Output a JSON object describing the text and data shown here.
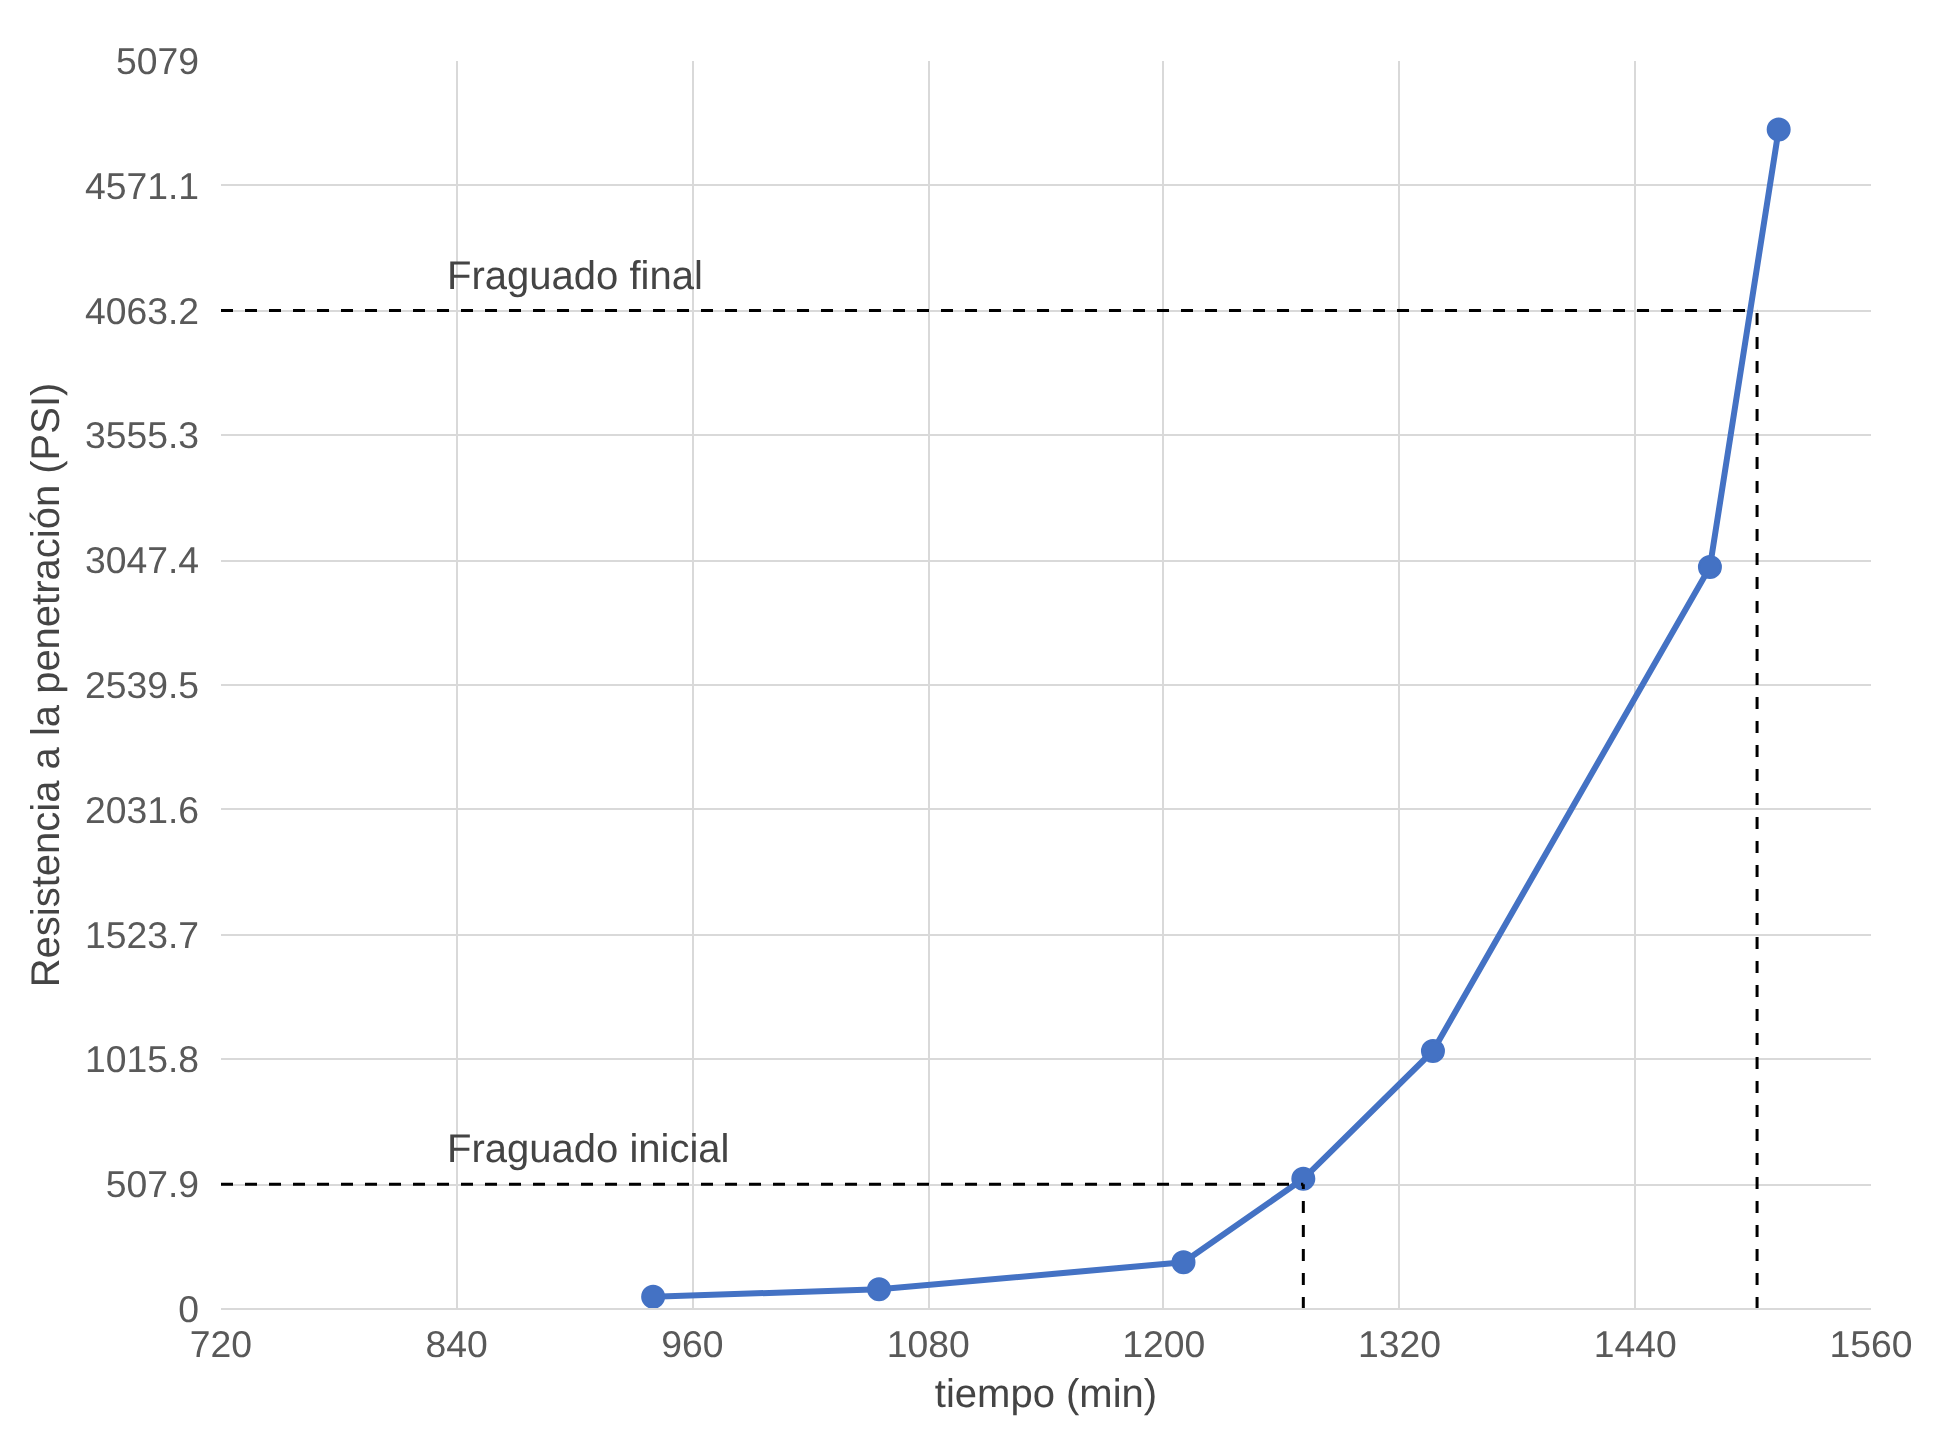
{
  "chart_data": {
    "type": "line",
    "xlabel": "tiempo (min)",
    "ylabel": "Resistencia a la penetración (PSI)",
    "x": [
      940,
      1055,
      1210,
      1271,
      1337,
      1478,
      1513
    ],
    "series": [
      {
        "color": "#4472c4",
        "values": [
          50,
          80,
          190,
          530,
          1050,
          3020,
          4800
        ]
      }
    ],
    "marker": "circle",
    "line_style": "solid",
    "xlim": [
      720,
      1560
    ],
    "xticks": [
      720,
      840,
      960,
      1080,
      1200,
      1320,
      1440,
      1560
    ],
    "ylim": [
      0,
      5079
    ],
    "yticks": [
      0,
      507.9,
      1015.8,
      1523.7,
      2031.6,
      2539.5,
      3047.4,
      3555.3,
      4063.2,
      4571.1,
      5079
    ],
    "ref_lines": [
      {
        "axis": "y",
        "value": 507.9,
        "label": "Fraguado inicial",
        "line_style": "dashed",
        "color": "#000000"
      },
      {
        "axis": "x",
        "value": 1271,
        "line_style": "dashed",
        "color": "#000000"
      },
      {
        "axis": "y",
        "value": 4063.2,
        "label": "Fraguado final",
        "line_style": "dashed",
        "color": "#000000"
      },
      {
        "axis": "x",
        "value": 1502,
        "line_style": "dashed",
        "color": "#000000"
      }
    ],
    "grid": true
  }
}
